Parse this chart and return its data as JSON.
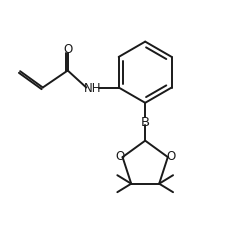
{
  "background_color": "#ffffff",
  "line_color": "#1a1a1a",
  "line_width": 1.4,
  "font_size": 8.5,
  "figsize": [
    2.36,
    2.28
  ],
  "dpi": 100,
  "xlim": [
    0,
    10
  ],
  "ylim": [
    0,
    10
  ]
}
